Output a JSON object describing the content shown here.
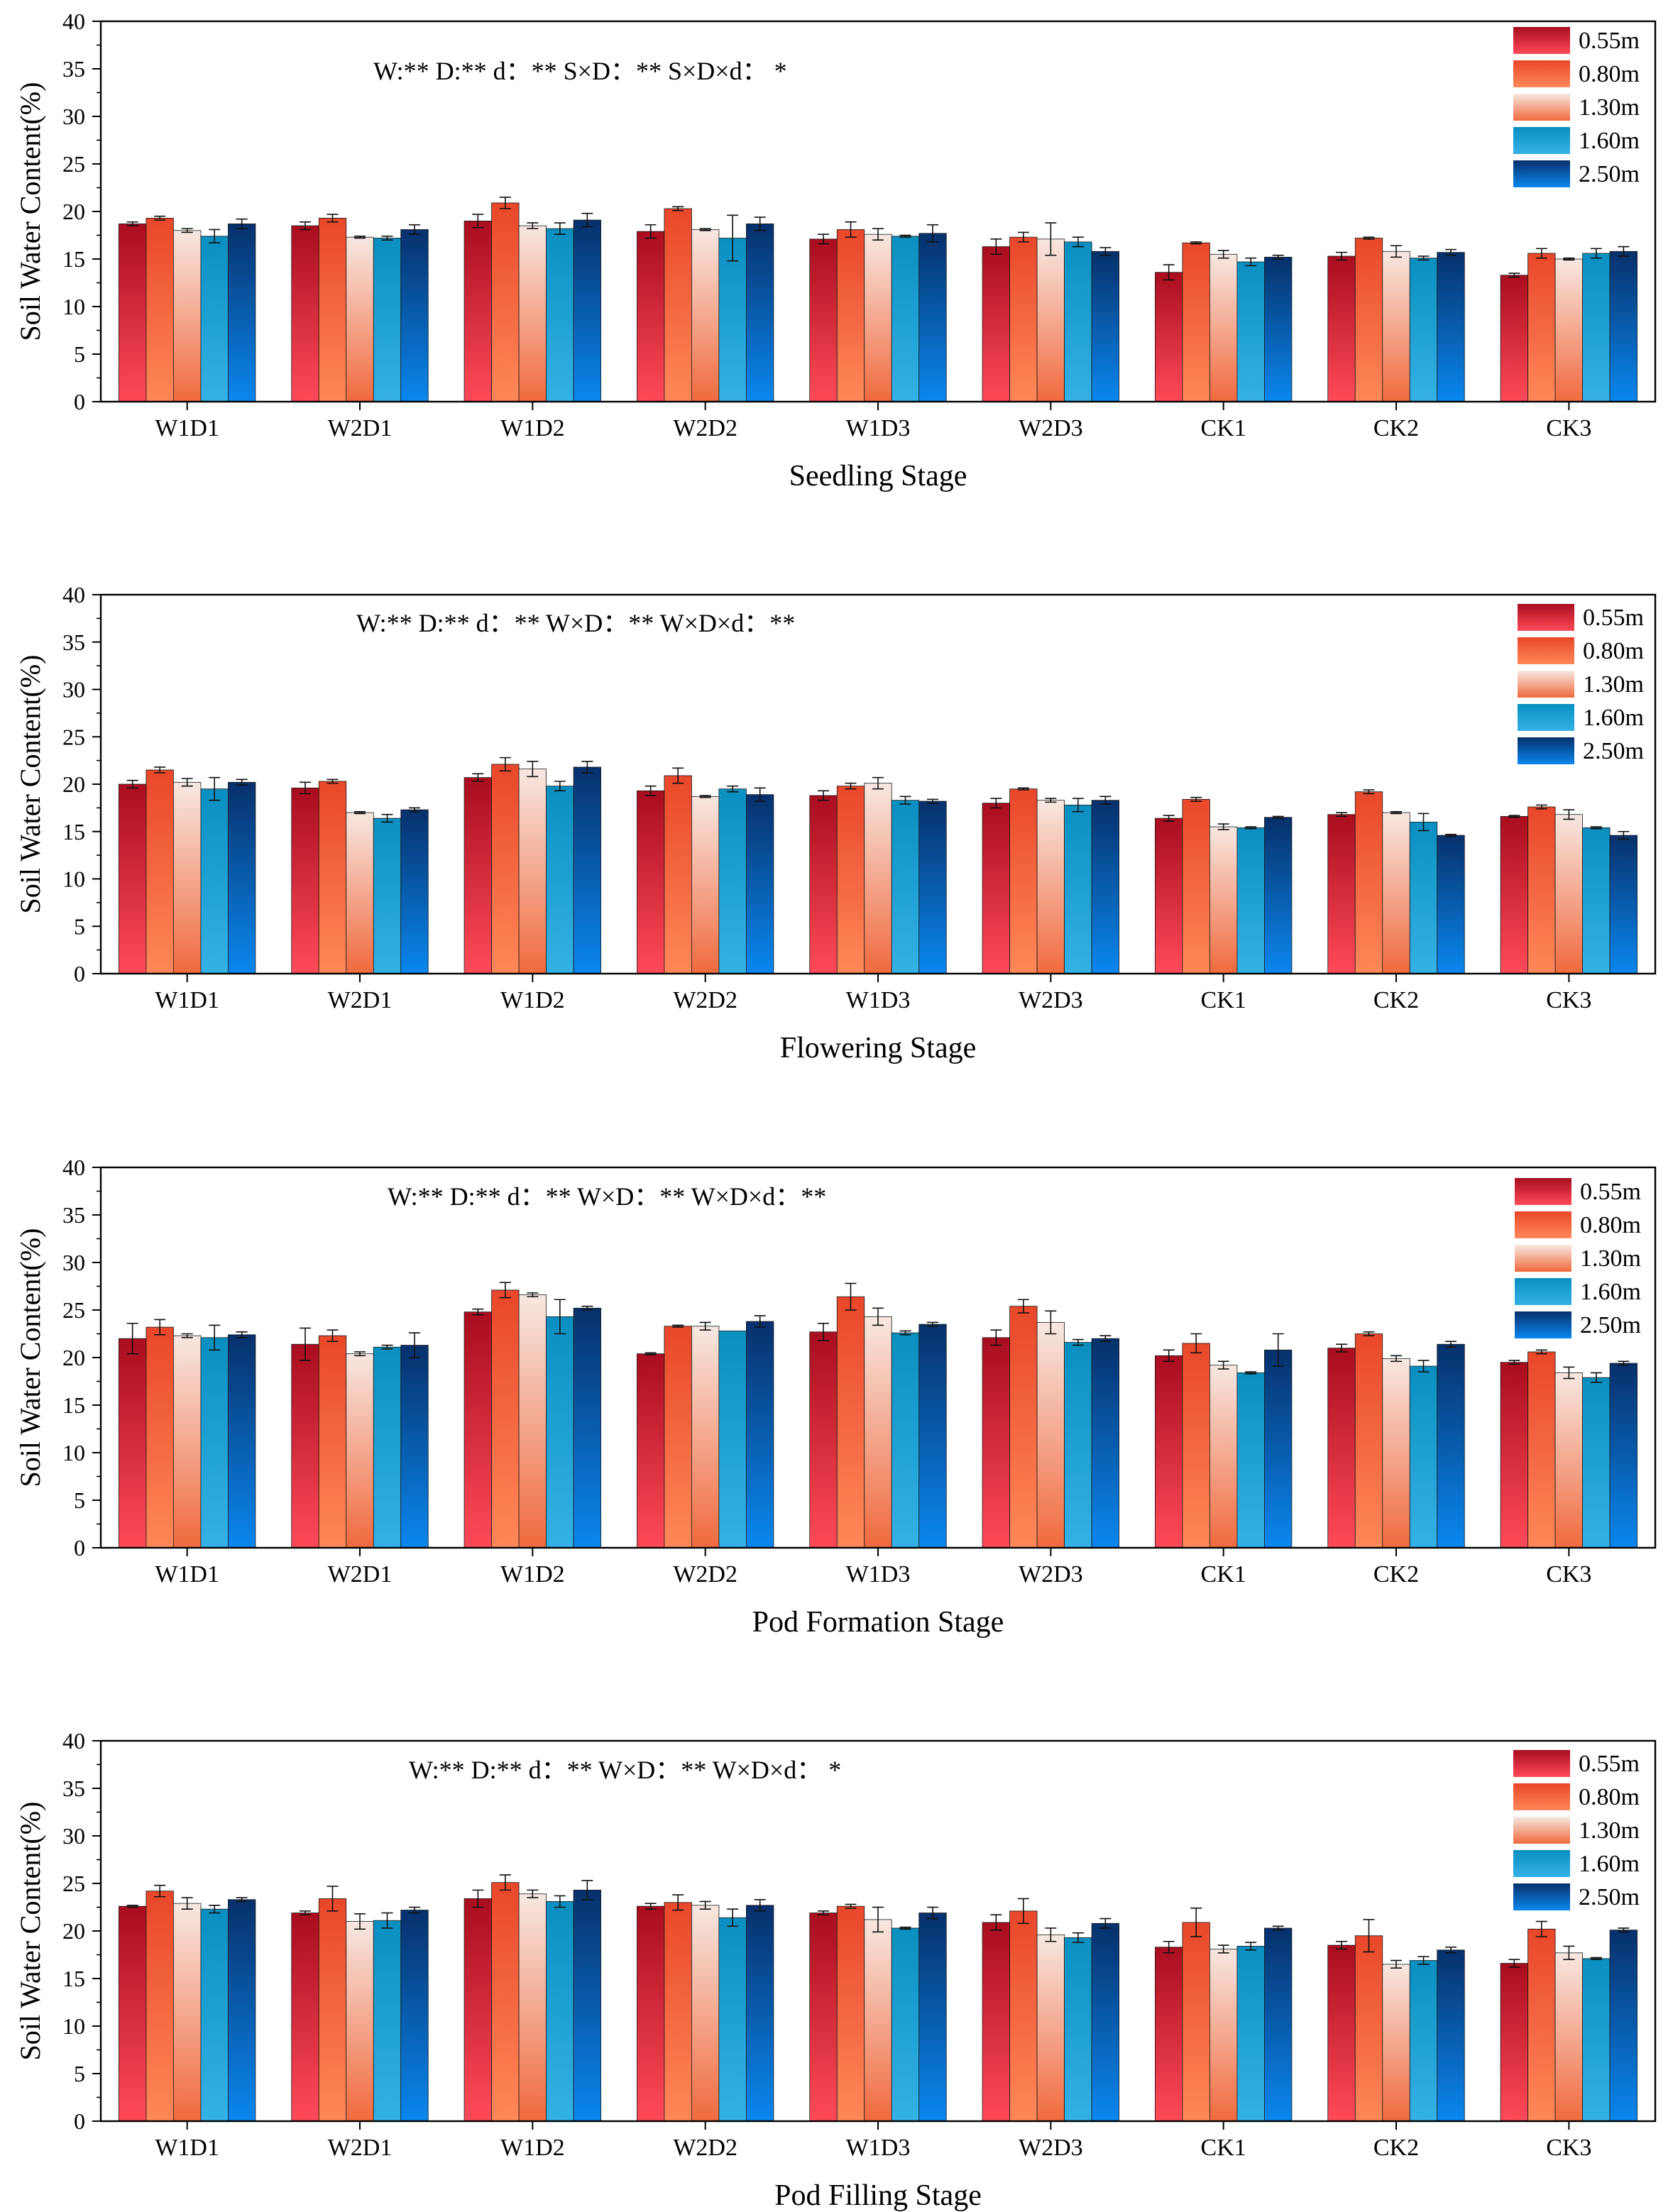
{
  "figure": {
    "type": "grouped-bar-panels",
    "y_axis_label": "Soil Water Content(%)",
    "legend": [
      "0.55m",
      "0.80m",
      "1.30m",
      "1.60m",
      "2.50m"
    ]
  },
  "colors": {
    "0.55m": [
      "#a80d1f",
      "#ff4a58"
    ],
    "0.80m": [
      "#e8472a",
      "#ff8858"
    ],
    "1.30m": [
      "#f7e8e2",
      "#f06a3e"
    ],
    "1.60m": [
      "#0a8fc0",
      "#34b1e6"
    ],
    "2.50m": [
      "#07306b",
      "#0a87ee"
    ]
  },
  "chart_data": [
    {
      "type": "bar",
      "title": "Seedling Stage",
      "xlabel": "Seedling Stage",
      "ylabel": "Soil Water Content(%)",
      "annotation": "W:** D:**  d：** S×D：** S×D×d： *",
      "ylim": [
        0,
        40
      ],
      "yticks": [
        0,
        5,
        10,
        15,
        20,
        25,
        30,
        35,
        40
      ],
      "categories": [
        "W1D1",
        "W2D1",
        "W1D2",
        "W2D2",
        "W1D3",
        "W2D3",
        "CK1",
        "CK2",
        "CK3"
      ],
      "series": [
        {
          "name": "0.55m",
          "values": [
            18.7,
            18.5,
            19.0,
            17.9,
            17.1,
            16.3,
            13.6,
            15.3,
            13.3
          ],
          "errors": [
            0.2,
            0.4,
            0.7,
            0.7,
            0.5,
            0.8,
            0.8,
            0.4,
            0.2
          ]
        },
        {
          "name": "0.80m",
          "values": [
            19.3,
            19.3,
            20.9,
            20.3,
            18.1,
            17.3,
            16.7,
            17.2,
            15.6
          ],
          "errors": [
            0.2,
            0.4,
            0.6,
            0.2,
            0.8,
            0.5,
            0.1,
            0.1,
            0.5
          ]
        },
        {
          "name": "1.30m",
          "values": [
            18.0,
            17.3,
            18.5,
            18.1,
            17.6,
            17.1,
            15.5,
            15.8,
            15.0
          ],
          "errors": [
            0.2,
            0.1,
            0.3,
            0.1,
            0.6,
            1.7,
            0.4,
            0.6,
            0.1
          ]
        },
        {
          "name": "1.60m",
          "values": [
            17.4,
            17.2,
            18.2,
            17.2,
            17.4,
            16.8,
            14.7,
            15.1,
            15.6
          ],
          "errors": [
            0.7,
            0.2,
            0.6,
            2.4,
            0.1,
            0.5,
            0.4,
            0.2,
            0.5
          ]
        },
        {
          "name": "2.50m",
          "values": [
            18.7,
            18.1,
            19.1,
            18.7,
            17.7,
            15.8,
            15.2,
            15.7,
            15.8
          ],
          "errors": [
            0.5,
            0.5,
            0.7,
            0.7,
            0.9,
            0.4,
            0.2,
            0.3,
            0.5
          ]
        }
      ]
    },
    {
      "type": "bar",
      "title": "Flowering Stage",
      "xlabel": "Flowering Stage",
      "ylabel": "Soil Water Content(%)",
      "annotation": "W:**  D:**  d：** W×D：** W×D×d：**",
      "ylim": [
        0,
        40
      ],
      "yticks": [
        0,
        5,
        10,
        15,
        20,
        25,
        30,
        35,
        40
      ],
      "categories": [
        "W1D1",
        "W2D1",
        "W1D2",
        "W2D2",
        "W1D3",
        "W2D3",
        "CK1",
        "CK2",
        "CK3"
      ],
      "series": [
        {
          "name": "0.55m",
          "values": [
            20.0,
            19.6,
            20.7,
            19.3,
            18.8,
            18.0,
            16.4,
            16.8,
            16.6
          ],
          "errors": [
            0.4,
            0.6,
            0.4,
            0.5,
            0.5,
            0.5,
            0.3,
            0.2,
            0.1
          ]
        },
        {
          "name": "0.80m",
          "values": [
            21.5,
            20.3,
            22.1,
            20.9,
            19.8,
            19.5,
            18.4,
            19.2,
            17.6
          ],
          "errors": [
            0.3,
            0.2,
            0.7,
            0.8,
            0.3,
            0.1,
            0.2,
            0.2,
            0.2
          ]
        },
        {
          "name": "1.30m",
          "values": [
            20.2,
            17.0,
            21.6,
            18.7,
            20.1,
            18.3,
            15.5,
            17.0,
            16.8
          ],
          "errors": [
            0.4,
            0.1,
            0.8,
            0.1,
            0.6,
            0.2,
            0.3,
            0.1,
            0.5
          ]
        },
        {
          "name": "1.60m",
          "values": [
            19.5,
            16.4,
            19.8,
            19.5,
            18.3,
            17.8,
            15.4,
            16.0,
            15.4
          ],
          "errors": [
            1.2,
            0.4,
            0.5,
            0.3,
            0.4,
            0.7,
            0.1,
            0.9,
            0.1
          ]
        },
        {
          "name": "2.50m",
          "values": [
            20.2,
            17.3,
            21.8,
            18.9,
            18.2,
            18.3,
            16.5,
            14.6,
            14.6
          ],
          "errors": [
            0.3,
            0.2,
            0.6,
            0.7,
            0.2,
            0.4,
            0.1,
            0.1,
            0.4
          ]
        }
      ]
    },
    {
      "type": "bar",
      "title": "Pod Formation Stage",
      "xlabel": "Pod Formation Stage",
      "ylabel": "Soil Water Content(%)",
      "annotation": "W:** D:** d：** W×D：** W×D×d：**",
      "ylim": [
        0,
        40
      ],
      "yticks": [
        0,
        5,
        10,
        15,
        20,
        25,
        30,
        35,
        40
      ],
      "categories": [
        "W1D1",
        "W2D1",
        "W1D2",
        "W2D2",
        "W1D3",
        "W2D3",
        "CK1",
        "CK2",
        "CK3"
      ],
      "series": [
        {
          "name": "0.55m",
          "values": [
            22.0,
            21.4,
            24.8,
            20.4,
            22.7,
            22.1,
            20.2,
            21.0,
            19.5
          ],
          "errors": [
            1.6,
            1.7,
            0.3,
            0.1,
            0.9,
            0.8,
            0.6,
            0.4,
            0.2
          ]
        },
        {
          "name": "0.80m",
          "values": [
            23.2,
            22.3,
            27.1,
            23.3,
            26.4,
            25.4,
            21.5,
            22.5,
            20.6
          ],
          "errors": [
            0.8,
            0.6,
            0.8,
            0.1,
            1.4,
            0.7,
            1.0,
            0.2,
            0.2
          ]
        },
        {
          "name": "1.30m",
          "values": [
            22.3,
            20.4,
            26.6,
            23.3,
            24.3,
            23.7,
            19.2,
            19.9,
            18.4
          ],
          "errors": [
            0.2,
            0.2,
            0.2,
            0.4,
            0.9,
            1.2,
            0.4,
            0.3,
            0.6
          ]
        },
        {
          "name": "1.60m",
          "values": [
            22.1,
            21.1,
            24.3,
            22.8,
            22.6,
            21.6,
            18.4,
            19.1,
            17.9
          ],
          "errors": [
            1.3,
            0.2,
            1.8,
            0.0,
            0.2,
            0.3,
            0.1,
            0.6,
            0.5
          ]
        },
        {
          "name": "2.50m",
          "values": [
            22.4,
            21.3,
            25.2,
            23.8,
            23.5,
            22.0,
            20.8,
            21.4,
            19.4
          ],
          "errors": [
            0.3,
            1.3,
            0.2,
            0.6,
            0.2,
            0.3,
            1.7,
            0.3,
            0.2
          ]
        }
      ]
    },
    {
      "type": "bar",
      "title": "Pod Filling Stage",
      "xlabel": "Pod Filling Stage",
      "ylabel": "Soil Water Content(%)",
      "annotation": "W:** D:** d：** W×D：** W×D×d： *",
      "ylim": [
        0,
        40
      ],
      "yticks": [
        0,
        5,
        10,
        15,
        20,
        25,
        30,
        35,
        40
      ],
      "categories": [
        "W1D1",
        "W2D1",
        "W1D2",
        "W2D2",
        "W1D3",
        "W2D3",
        "CK1",
        "CK2",
        "CK3"
      ],
      "series": [
        {
          "name": "0.55m",
          "values": [
            22.6,
            21.9,
            23.4,
            22.6,
            21.9,
            20.9,
            18.3,
            18.5,
            16.6
          ],
          "errors": [
            0.1,
            0.2,
            0.9,
            0.3,
            0.2,
            0.8,
            0.6,
            0.4,
            0.4
          ]
        },
        {
          "name": "0.80m",
          "values": [
            24.2,
            23.4,
            25.1,
            23.0,
            22.6,
            22.1,
            20.9,
            19.5,
            20.2
          ],
          "errors": [
            0.6,
            1.3,
            0.8,
            0.8,
            0.2,
            1.3,
            1.5,
            1.7,
            0.8
          ]
        },
        {
          "name": "1.30m",
          "values": [
            22.9,
            21.0,
            23.9,
            22.7,
            21.2,
            19.6,
            18.1,
            16.5,
            17.7
          ],
          "errors": [
            0.6,
            0.8,
            0.4,
            0.4,
            1.3,
            0.7,
            0.4,
            0.4,
            0.7
          ]
        },
        {
          "name": "1.60m",
          "values": [
            22.3,
            21.1,
            23.1,
            21.4,
            20.3,
            19.3,
            18.4,
            16.9,
            17.1
          ],
          "errors": [
            0.4,
            0.8,
            0.6,
            0.9,
            0.1,
            0.5,
            0.4,
            0.4,
            0.1
          ]
        },
        {
          "name": "2.50m",
          "values": [
            23.3,
            22.2,
            24.3,
            22.7,
            21.9,
            20.8,
            20.3,
            18.0,
            20.1
          ],
          "errors": [
            0.2,
            0.3,
            1.0,
            0.6,
            0.6,
            0.5,
            0.2,
            0.3,
            0.2
          ]
        }
      ]
    }
  ]
}
